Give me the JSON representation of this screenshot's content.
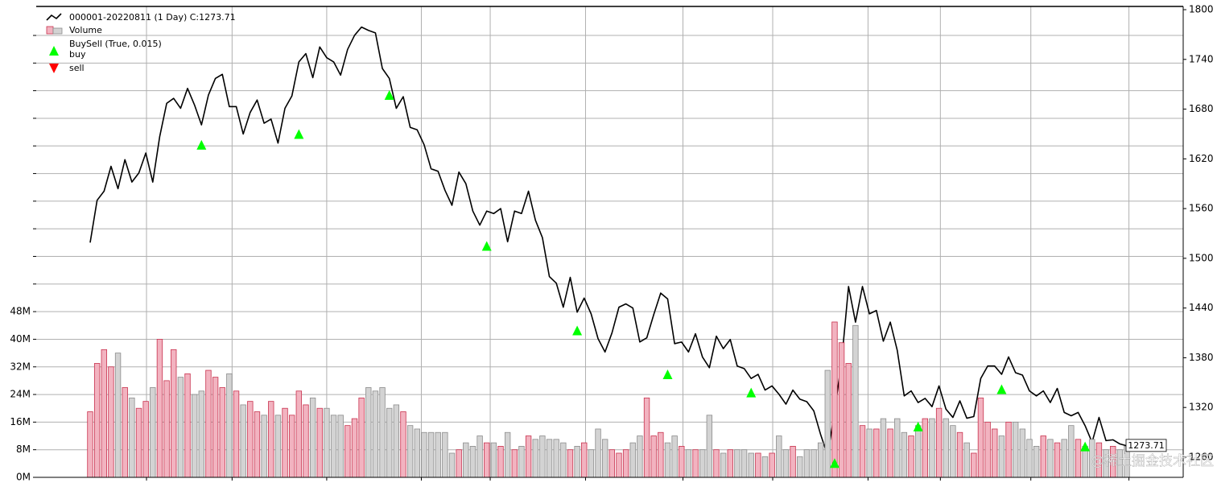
{
  "chart_data": {
    "type": "line",
    "buysell_label": "BuySell (True, 0.015)",
    "watermark": "@稀土掘金技术社区",
    "grid": true,
    "y_axis_side": "right",
    "y2_axis_side": "left",
    "legend": "upper left",
    "ylim": [
      1235.7,
      1803.9
    ],
    "yticks": [
      1260,
      1320,
      1380,
      1440,
      1500,
      1560,
      1620,
      1680,
      1740,
      1800
    ],
    "y2lim": [
      0,
      136.4
    ],
    "y2ticks": [
      {
        "value": 0,
        "label": "0M"
      },
      {
        "value": 8,
        "label": "8M"
      },
      {
        "value": 16,
        "label": "16M"
      },
      {
        "value": 24,
        "label": "24M"
      },
      {
        "value": 32,
        "label": "32M"
      },
      {
        "value": 40,
        "label": "40M"
      },
      {
        "value": 48,
        "label": "48M"
      },
      {
        "value": 56,
        "label": null
      },
      {
        "value": 64,
        "label": null
      },
      {
        "value": 72,
        "label": null
      },
      {
        "value": 80,
        "label": null
      },
      {
        "value": 88,
        "label": null
      },
      {
        "value": 96,
        "label": null
      },
      {
        "value": 104,
        "label": null
      },
      {
        "value": 112,
        "label": null
      },
      {
        "value": 120,
        "label": null
      },
      {
        "value": 128,
        "label": null
      }
    ],
    "xticks": [
      8.1,
      20.4,
      34,
      47.6,
      57.5,
      71.2,
      85.2,
      98.1,
      111.8,
      122.2,
      135.2,
      149.3
    ],
    "series": [
      {
        "name": "000001-20220811 (1 Day) C:1273.71",
        "type": "line",
        "color": "#000000",
        "values": [
          1519,
          1570,
          1581,
          1611,
          1584,
          1619,
          1592,
          1603,
          1627,
          1592,
          1647,
          1687,
          1693,
          1681,
          1705,
          1685,
          1661,
          1697,
          1717,
          1722,
          1683,
          1683,
          1650,
          1676,
          1691,
          1663,
          1668,
          1639,
          1681,
          1696,
          1737,
          1747,
          1718,
          1755,
          1742,
          1737,
          1721,
          1752,
          1769,
          1779,
          1775,
          1772,
          1729,
          1717,
          1681,
          1695,
          1658,
          1655,
          1637,
          1608,
          1605,
          1582,
          1564,
          1604,
          1590,
          1557,
          1540,
          1557,
          1554,
          1560,
          1520,
          1557,
          1554,
          1581,
          1546,
          1525,
          1478,
          1470,
          1441,
          1477,
          1435,
          1452,
          1433,
          1403,
          1387,
          1410,
          1441,
          1445,
          1440,
          1399,
          1404,
          1432,
          1458,
          1451,
          1397,
          1399,
          1387,
          1409,
          1381,
          1368,
          1406,
          1391,
          1402,
          1370,
          1367,
          1355,
          1360,
          1341,
          1346,
          1336,
          1324,
          1341,
          1330,
          1327,
          1316,
          1287,
          1262,
          1316,
          1375,
          1466,
          1423,
          1466,
          1433,
          1437,
          1400,
          1423,
          1389,
          1334,
          1340,
          1326,
          1331,
          1321,
          1346,
          1318,
          1308,
          1328,
          1307,
          1309,
          1355,
          1370,
          1370,
          1360,
          1381,
          1362,
          1359,
          1340,
          1334,
          1340,
          1326,
          1343,
          1314,
          1310,
          1314,
          1298,
          1278,
          1308,
          1280,
          1281,
          1276,
          1273.71
        ]
      },
      {
        "name": "Volume",
        "type": "bar",
        "axis": "y2",
        "up_color": "#f2b3c0",
        "up_edge": "#c8324e",
        "down_color": "#d3d3d3",
        "down_edge": "#8c8c8c",
        "values": [
          19,
          33,
          37,
          32,
          36,
          26,
          23,
          20,
          22,
          26,
          40,
          28,
          37,
          29,
          30,
          24,
          25,
          31,
          29,
          26,
          30,
          25,
          21,
          22,
          19,
          18,
          22,
          18,
          20,
          18,
          25,
          21,
          23,
          20,
          20,
          18,
          18,
          15,
          17,
          23,
          26,
          25,
          26,
          20,
          21,
          19,
          15,
          14,
          13,
          13,
          13,
          13,
          7,
          8,
          10,
          9,
          12,
          10,
          10,
          9,
          13,
          8,
          9,
          12,
          11,
          12,
          11,
          11,
          10,
          8,
          9,
          10,
          8,
          14,
          11,
          8,
          7,
          8,
          10,
          12,
          23,
          12,
          13,
          10,
          12,
          9,
          8,
          8,
          8,
          18,
          8,
          7,
          8,
          8,
          8,
          7,
          7,
          6,
          7,
          12,
          8,
          9,
          6,
          8,
          8,
          10,
          31,
          45,
          39,
          33,
          44,
          15,
          14,
          14,
          17,
          14,
          17,
          13,
          12,
          15,
          17,
          17,
          20,
          17,
          15,
          13,
          10,
          7,
          23,
          16,
          14,
          12,
          16,
          16,
          14,
          11,
          9,
          12,
          11,
          10,
          11,
          15,
          11,
          9,
          11,
          10,
          8,
          9,
          8,
          9
        ]
      },
      {
        "name": "buy",
        "type": "marker",
        "marker": "up",
        "color": "#00ff00",
        "values": [
          null,
          null,
          null,
          null,
          null,
          null,
          null,
          null,
          null,
          null,
          null,
          null,
          null,
          null,
          null,
          null,
          1637,
          null,
          null,
          null,
          null,
          null,
          null,
          null,
          null,
          null,
          null,
          null,
          null,
          null,
          1650,
          null,
          null,
          null,
          null,
          null,
          null,
          null,
          null,
          null,
          null,
          null,
          null,
          1697,
          null,
          null,
          null,
          null,
          null,
          null,
          null,
          null,
          null,
          null,
          null,
          null,
          null,
          1515,
          null,
          null,
          null,
          null,
          null,
          null,
          null,
          null,
          null,
          null,
          null,
          null,
          1413,
          null,
          null,
          null,
          null,
          null,
          null,
          null,
          null,
          null,
          null,
          null,
          null,
          1360,
          null,
          null,
          null,
          null,
          null,
          null,
          null,
          null,
          null,
          null,
          null,
          1338,
          null,
          null,
          null,
          null,
          null,
          null,
          null,
          null,
          null,
          null,
          null,
          1253,
          null,
          null,
          null,
          null,
          null,
          null,
          null,
          null,
          null,
          null,
          null,
          1297,
          null,
          null,
          null,
          null,
          null,
          null,
          null,
          null,
          null,
          null,
          null,
          1342,
          null,
          null,
          null,
          null,
          null,
          null,
          null,
          null,
          null,
          null,
          null,
          1273,
          null,
          null,
          null,
          null,
          null,
          null
        ]
      },
      {
        "name": "sell",
        "type": "marker",
        "marker": "down",
        "color": "#ff0000",
        "values": [
          null,
          null,
          null,
          null,
          null,
          null,
          null,
          null,
          null,
          null,
          null,
          null,
          null,
          null,
          null,
          null,
          null,
          null,
          null,
          null,
          null,
          null,
          null,
          null,
          null,
          null,
          null,
          null,
          null,
          null,
          null,
          null,
          null,
          null,
          null,
          null,
          null,
          null,
          null,
          null,
          null,
          null,
          null,
          null,
          null,
          null,
          null,
          null,
          null,
          null,
          null,
          null,
          null,
          null,
          null,
          null,
          null,
          null,
          null,
          null,
          null,
          null,
          null,
          null,
          null,
          null,
          null,
          null,
          null,
          null,
          null,
          null,
          null,
          null,
          null,
          null,
          null,
          null,
          null,
          null,
          null,
          null,
          null,
          null,
          null,
          null,
          null,
          null,
          null,
          null,
          null,
          null,
          null,
          null,
          null,
          null,
          null,
          null,
          null,
          null,
          null,
          null,
          null,
          null,
          null,
          null,
          null,
          null,
          null,
          null,
          null,
          null,
          null,
          null,
          null,
          null,
          null,
          null,
          null,
          null,
          null,
          null,
          null,
          null,
          null,
          null,
          null,
          null,
          null,
          null,
          null,
          null,
          null,
          null,
          null,
          null,
          null,
          null,
          null,
          null,
          null,
          null,
          null,
          null,
          null,
          null,
          null,
          null,
          null,
          null
        ]
      }
    ]
  }
}
